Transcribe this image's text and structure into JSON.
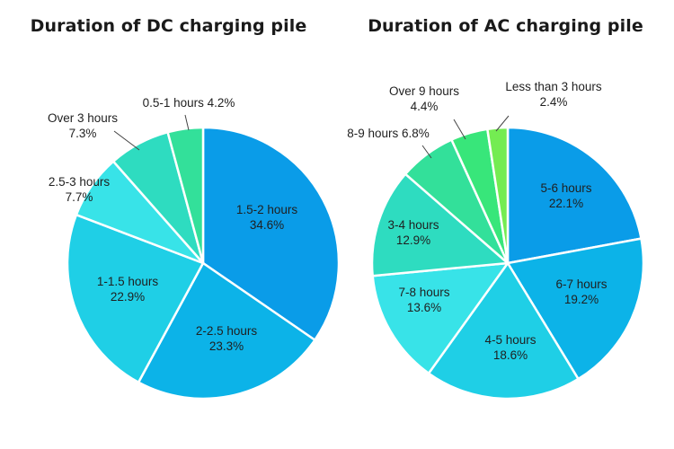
{
  "chart_data": [
    {
      "type": "pie",
      "title": "Duration of DC charging pile",
      "slices": [
        {
          "label": "1.5-2 hours",
          "value": 34.6,
          "display": "34.6%",
          "color": "#0a9ce8"
        },
        {
          "label": "2-2.5 hours",
          "value": 23.3,
          "display": "23.3%",
          "color": "#0cb3e8"
        },
        {
          "label": "1-1.5 hours",
          "value": 22.9,
          "display": "22.9%",
          "color": "#1fcfe6"
        },
        {
          "label": "2.5-3 hours",
          "value": 7.7,
          "display": "7.7%",
          "color": "#38e3e8"
        },
        {
          "label": "Over 3 hours",
          "value": 7.3,
          "display": "7.3%",
          "color": "#2edcc0"
        },
        {
          "label": "0.5-1 hours",
          "value": 4.2,
          "display": "4.2%",
          "color": "#33e09a"
        }
      ]
    },
    {
      "type": "pie",
      "title": "Duration of AC charging pile",
      "slices": [
        {
          "label": "5-6 hours",
          "value": 22.1,
          "display": "22.1%",
          "color": "#0a9ce8"
        },
        {
          "label": "6-7 hours",
          "value": 19.2,
          "display": "19.2%",
          "color": "#0cb3e8"
        },
        {
          "label": "4-5 hours",
          "value": 18.6,
          "display": "18.6%",
          "color": "#1fcfe6"
        },
        {
          "label": "7-8 hours",
          "value": 13.6,
          "display": "13.6%",
          "color": "#38e3e8"
        },
        {
          "label": "3-4 hours",
          "value": 12.9,
          "display": "12.9%",
          "color": "#2edcc0"
        },
        {
          "label": "8-9 hours",
          "value": 6.8,
          "display": "6.8%",
          "color": "#33e09a"
        },
        {
          "label": "Over 9 hours",
          "value": 4.4,
          "display": "4.4%",
          "color": "#38e67a"
        },
        {
          "label": "Less than 3 hours",
          "value": 2.4,
          "display": "2.4%",
          "color": "#74ec52"
        }
      ]
    }
  ]
}
